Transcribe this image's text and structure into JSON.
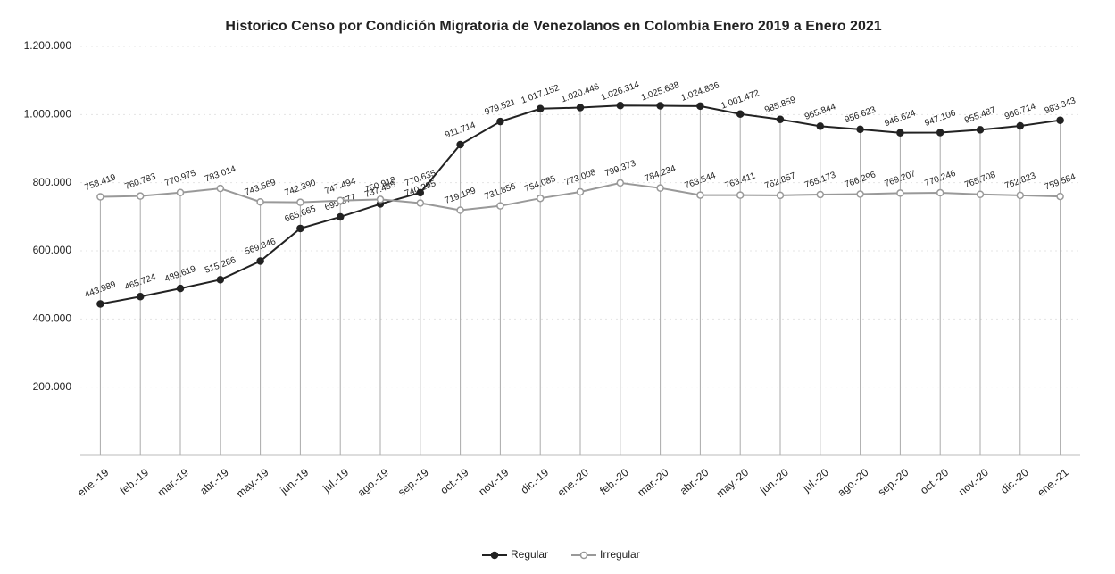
{
  "chart_data": {
    "type": "line",
    "title": "Historico Censo por Condición Migratoria de Venezolanos en Colombia Enero 2019 a Enero 2021",
    "categories": [
      "ene.-19",
      "feb.-19",
      "mar.-19",
      "abr.-19",
      "may.-19",
      "jun.-19",
      "jul.-19",
      "ago.-19",
      "sep.-19",
      "oct.-19",
      "nov.-19",
      "dic.-19",
      "ene.-20",
      "feb.-20",
      "mar.-20",
      "abr.-20",
      "may.-20",
      "jun.-20",
      "jul.-20",
      "ago.-20",
      "sep.-20",
      "oct.-20",
      "nov.-20",
      "dic.-20",
      "ene.-21"
    ],
    "series": [
      {
        "name": "Regular",
        "color": "#222222",
        "values": [
          443989,
          465724,
          489619,
          515286,
          569846,
          665665,
          699677,
          737455,
          770635,
          911714,
          979521,
          1017152,
          1020446,
          1026314,
          1025638,
          1024836,
          1001472,
          985859,
          965844,
          956623,
          946624,
          947106,
          955487,
          966714,
          983343
        ],
        "value_labels": [
          "443.989",
          "465.724",
          "489.619",
          "515.286",
          "569.846",
          "665.665",
          "699.677",
          "737.455",
          "770.635",
          "911.714",
          "979.521",
          "1.017.152",
          "1.020.446",
          "1.026.314",
          "1.025.638",
          "1.024.836",
          "1.001.472",
          "985.859",
          "965.844",
          "956.623",
          "946.624",
          "947.106",
          "955.487",
          "966.714",
          "983.343"
        ]
      },
      {
        "name": "Irregular",
        "color": "#999999",
        "values": [
          758419,
          760783,
          770975,
          783014,
          743569,
          742390,
          747494,
          750918,
          740295,
          719189,
          731856,
          754085,
          773008,
          799373,
          784234,
          763544,
          763411,
          762857,
          765173,
          766296,
          769207,
          770246,
          765708,
          762823,
          759584
        ],
        "value_labels": [
          "758.419",
          "760.783",
          "770.975",
          "783.014",
          "743.569",
          "742.390",
          "747.494",
          "750.918",
          "740.295",
          "719.189",
          "731.856",
          "754.085",
          "773.008",
          "799.373",
          "784.234",
          "763.544",
          "763.411",
          "762.857",
          "765.173",
          "766.296",
          "769.207",
          "770.246",
          "765.708",
          "762.823",
          "759.584"
        ]
      }
    ],
    "ylim": [
      0,
      1200000
    ],
    "yticks": [
      {
        "value": 200000,
        "label": "200.000"
      },
      {
        "value": 400000,
        "label": "400.000"
      },
      {
        "value": 600000,
        "label": "600.000"
      },
      {
        "value": 800000,
        "label": "800.000"
      },
      {
        "value": 1000000,
        "label": "1.000.000"
      },
      {
        "value": 1200000,
        "label": "1.200.000"
      }
    ],
    "grid": true,
    "legend": "bottom"
  }
}
